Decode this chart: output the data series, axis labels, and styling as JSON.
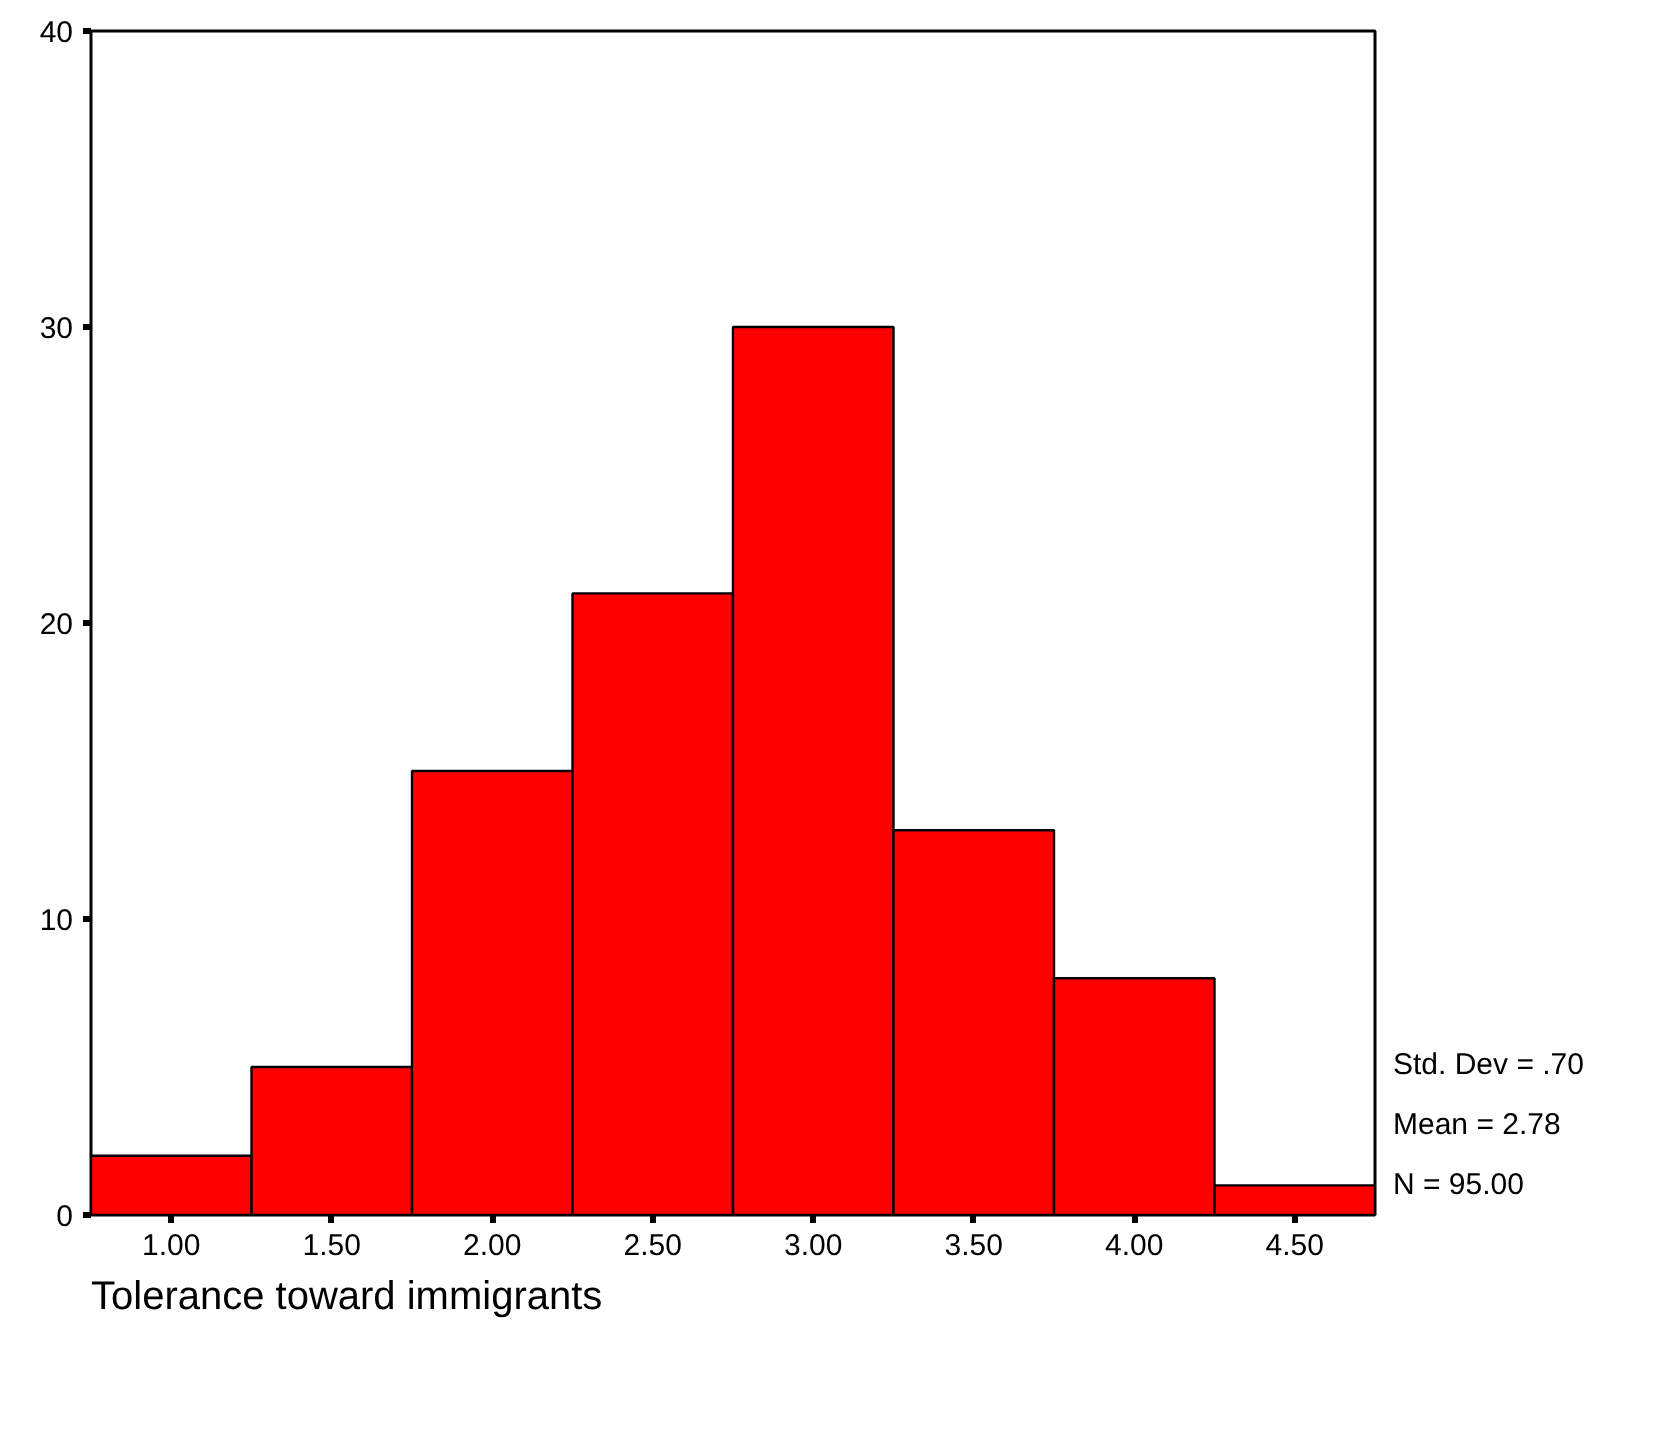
{
  "chart_data": {
    "type": "histogram",
    "xlabel": "Tolerance toward immigrants",
    "bins": [
      0.75,
      1.25,
      1.75,
      2.25,
      2.75,
      3.25,
      3.75,
      4.25,
      4.75
    ],
    "values": [
      2,
      5,
      15,
      21,
      30,
      13,
      8,
      1
    ],
    "color": "#ff0000",
    "xlim": [
      0.75,
      4.75
    ],
    "xticks": [
      {
        "value": 1,
        "label": "1.00"
      },
      {
        "value": 1.5,
        "label": "1.50"
      },
      {
        "value": 2,
        "label": "2.00"
      },
      {
        "value": 2.5,
        "label": "2.50"
      },
      {
        "value": 3,
        "label": "3.00"
      },
      {
        "value": 3.5,
        "label": "3.50"
      },
      {
        "value": 4,
        "label": "4.00"
      },
      {
        "value": 4.5,
        "label": "4.50"
      }
    ],
    "ylim": [
      0,
      40
    ],
    "yticks": [
      0,
      10,
      20,
      30,
      40
    ],
    "grid": false,
    "legend": false,
    "annotations": [
      "Std. Dev = .70",
      "Mean = 2.78",
      "N = 95.00"
    ]
  }
}
